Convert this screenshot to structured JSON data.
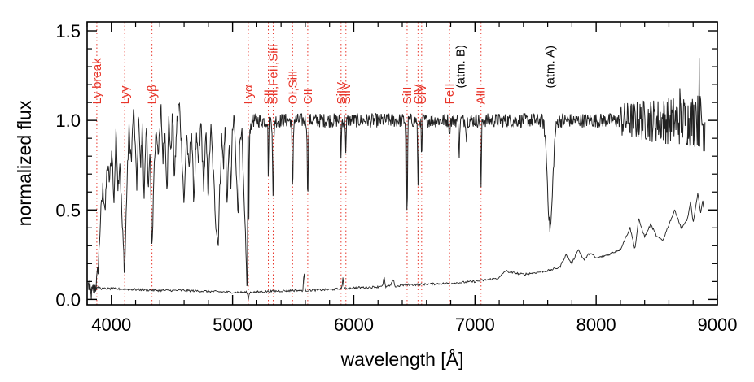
{
  "chart_data": {
    "type": "line",
    "xlabel": "wavelength [Å]",
    "ylabel": "normalized flux",
    "xlim": [
      3800,
      9000
    ],
    "ylim": [
      -0.03,
      1.55
    ],
    "x_ticks": [
      4000,
      5000,
      6000,
      7000,
      8000,
      9000
    ],
    "x_tick_labels": [
      "4000",
      "5000",
      "6000",
      "7000",
      "8000",
      "9000"
    ],
    "y_ticks": [
      0.0,
      0.5,
      1.0,
      1.5
    ],
    "y_tick_labels": [
      "0.0",
      "0.5",
      "1.0",
      "1.5"
    ],
    "colors": {
      "line_label": "#e8352a",
      "atm_label": "#000000",
      "spectrum": "#222222",
      "marker": "#e8352a"
    },
    "line_markers": [
      {
        "label": "Ly break",
        "x": 3880,
        "kind": "line"
      },
      {
        "label": "Lyγ",
        "x": 4110,
        "kind": "line"
      },
      {
        "label": "Lyβ",
        "x": 4335,
        "kind": "line"
      },
      {
        "label": "Lyα",
        "x": 5130,
        "kind": "line"
      },
      {
        "label": "SII",
        "x": 5295,
        "kind": "line"
      },
      {
        "label": "SII,FeII,SiII",
        "x": 5335,
        "kind": "line"
      },
      {
        "label": "OI,SiII",
        "x": 5495,
        "kind": "line"
      },
      {
        "label": "CII",
        "x": 5620,
        "kind": "line"
      },
      {
        "label": "SiIV",
        "x": 5895,
        "kind": "line"
      },
      {
        "label": "SiIV",
        "x": 5935,
        "kind": "line"
      },
      {
        "label": "SiII",
        "x": 6440,
        "kind": "line"
      },
      {
        "label": "CIV",
        "x": 6530,
        "kind": "line"
      },
      {
        "label": "CIV",
        "x": 6560,
        "kind": "line"
      },
      {
        "label": "FeII",
        "x": 6790,
        "kind": "line"
      },
      {
        "label": "(atm. B)",
        "x": 6880,
        "kind": "atm"
      },
      {
        "label": "AlII",
        "x": 7050,
        "kind": "line"
      },
      {
        "label": "(atm. A)",
        "x": 7620,
        "kind": "atm"
      }
    ],
    "series": [
      {
        "name": "normalized spectrum",
        "continuum": 1.0,
        "x_range": [
          3810,
          8900
        ],
        "forest_end": 5125,
        "forest_points": [
          [
            3810,
            0.08
          ],
          [
            3835,
            0.03
          ],
          [
            3860,
            0.06
          ],
          [
            3880,
            0.1
          ],
          [
            3895,
            0.22
          ],
          [
            3910,
            0.45
          ],
          [
            3930,
            0.62
          ],
          [
            3950,
            0.5
          ],
          [
            3965,
            0.75
          ],
          [
            3985,
            0.66
          ],
          [
            4005,
            0.85
          ],
          [
            4020,
            0.52
          ],
          [
            4040,
            0.95
          ],
          [
            4055,
            0.62
          ],
          [
            4070,
            0.78
          ],
          [
            4090,
            0.4
          ],
          [
            4110,
            0.15
          ],
          [
            4125,
            0.55
          ],
          [
            4145,
            0.95
          ],
          [
            4165,
            0.76
          ],
          [
            4180,
            1.05
          ],
          [
            4195,
            0.92
          ],
          [
            4210,
            0.6
          ],
          [
            4225,
            1.07
          ],
          [
            4240,
            0.72
          ],
          [
            4255,
            0.97
          ],
          [
            4270,
            0.58
          ],
          [
            4290,
            0.95
          ],
          [
            4305,
            0.64
          ],
          [
            4320,
            0.82
          ],
          [
            4335,
            0.23
          ],
          [
            4350,
            0.7
          ],
          [
            4370,
            0.95
          ],
          [
            4390,
            0.82
          ],
          [
            4410,
            1.06
          ],
          [
            4425,
            0.78
          ],
          [
            4440,
            0.95
          ],
          [
            4460,
            0.62
          ],
          [
            4475,
            1.03
          ],
          [
            4490,
            0.8
          ],
          [
            4505,
            1.05
          ],
          [
            4520,
            0.66
          ],
          [
            4540,
            0.98
          ],
          [
            4560,
            1.1
          ],
          [
            4580,
            0.85
          ],
          [
            4600,
            0.52
          ],
          [
            4620,
            0.95
          ],
          [
            4640,
            0.7
          ],
          [
            4660,
            0.98
          ],
          [
            4680,
            0.55
          ],
          [
            4700,
            0.9
          ],
          [
            4720,
            0.75
          ],
          [
            4740,
            1.0
          ],
          [
            4760,
            0.62
          ],
          [
            4780,
            0.92
          ],
          [
            4800,
            0.58
          ],
          [
            4820,
            0.97
          ],
          [
            4840,
            0.72
          ],
          [
            4860,
            0.45
          ],
          [
            4880,
            0.3
          ],
          [
            4895,
            0.62
          ],
          [
            4910,
            0.9
          ],
          [
            4925,
            0.75
          ],
          [
            4940,
            0.98
          ],
          [
            4955,
            0.5
          ],
          [
            4970,
            0.88
          ],
          [
            4985,
            0.62
          ],
          [
            5000,
            0.95
          ],
          [
            5015,
            1.0
          ],
          [
            5030,
            0.7
          ],
          [
            5045,
            0.48
          ],
          [
            5060,
            0.88
          ],
          [
            5075,
            0.98
          ],
          [
            5090,
            0.62
          ],
          [
            5105,
            0.35
          ],
          [
            5115,
            0.15
          ],
          [
            5125,
            0.02
          ]
        ],
        "absorptions": [
          [
            5135,
            0.45,
            3
          ],
          [
            5295,
            0.7,
            4
          ],
          [
            5335,
            0.55,
            6
          ],
          [
            5495,
            0.6,
            6
          ],
          [
            5620,
            0.6,
            6
          ],
          [
            5895,
            0.8,
            4
          ],
          [
            5935,
            0.8,
            4
          ],
          [
            6440,
            0.45,
            5
          ],
          [
            6530,
            0.6,
            5
          ],
          [
            6560,
            0.75,
            4
          ],
          [
            6790,
            0.9,
            4
          ],
          [
            6870,
            0.8,
            5
          ],
          [
            6930,
            0.88,
            4
          ],
          [
            7050,
            0.6,
            5
          ],
          [
            7620,
            0.4,
            30
          ]
        ],
        "emission_spikes": [
          [
            8690,
            1.18
          ],
          [
            8820,
            1.1
          ],
          [
            8850,
            1.35
          ]
        ],
        "high_end_dip": [
          8890,
          0.83
        ]
      },
      {
        "name": "error spectrum",
        "points": [
          [
            3810,
            0.09
          ],
          [
            3830,
            0.03
          ],
          [
            3850,
            0.08
          ],
          [
            3870,
            0.05
          ],
          [
            3890,
            0.07
          ],
          [
            3920,
            0.06
          ],
          [
            4000,
            0.06
          ],
          [
            4200,
            0.055
          ],
          [
            4400,
            0.05
          ],
          [
            4600,
            0.05
          ],
          [
            4800,
            0.045
          ],
          [
            5000,
            0.04
          ],
          [
            5120,
            0.04
          ],
          [
            5130,
            0.0
          ],
          [
            5140,
            0.04
          ],
          [
            5300,
            0.045
          ],
          [
            5500,
            0.05
          ],
          [
            5580,
            0.05
          ],
          [
            5590,
            0.16
          ],
          [
            5600,
            0.05
          ],
          [
            5800,
            0.055
          ],
          [
            5900,
            0.06
          ],
          [
            5910,
            0.12
          ],
          [
            5920,
            0.06
          ],
          [
            6000,
            0.065
          ],
          [
            6200,
            0.07
          ],
          [
            6240,
            0.08
          ],
          [
            6250,
            0.13
          ],
          [
            6260,
            0.07
          ],
          [
            6300,
            0.075
          ],
          [
            6330,
            0.11
          ],
          [
            6340,
            0.07
          ],
          [
            6400,
            0.08
          ],
          [
            6600,
            0.085
          ],
          [
            6800,
            0.09
          ],
          [
            7000,
            0.1
          ],
          [
            7200,
            0.12
          ],
          [
            7250,
            0.16
          ],
          [
            7300,
            0.15
          ],
          [
            7400,
            0.14
          ],
          [
            7500,
            0.15
          ],
          [
            7600,
            0.16
          ],
          [
            7700,
            0.18
          ],
          [
            7750,
            0.25
          ],
          [
            7800,
            0.2
          ],
          [
            7850,
            0.28
          ],
          [
            7900,
            0.22
          ],
          [
            7950,
            0.26
          ],
          [
            8000,
            0.23
          ],
          [
            8100,
            0.25
          ],
          [
            8200,
            0.28
          ],
          [
            8280,
            0.4
          ],
          [
            8320,
            0.28
          ],
          [
            8350,
            0.45
          ],
          [
            8400,
            0.35
          ],
          [
            8450,
            0.42
          ],
          [
            8500,
            0.35
          ],
          [
            8550,
            0.33
          ],
          [
            8600,
            0.42
          ],
          [
            8650,
            0.5
          ],
          [
            8700,
            0.4
          ],
          [
            8750,
            0.44
          ],
          [
            8780,
            0.55
          ],
          [
            8800,
            0.42
          ],
          [
            8840,
            0.6
          ],
          [
            8860,
            0.48
          ],
          [
            8880,
            0.55
          ],
          [
            8890,
            0.48
          ]
        ]
      }
    ]
  }
}
